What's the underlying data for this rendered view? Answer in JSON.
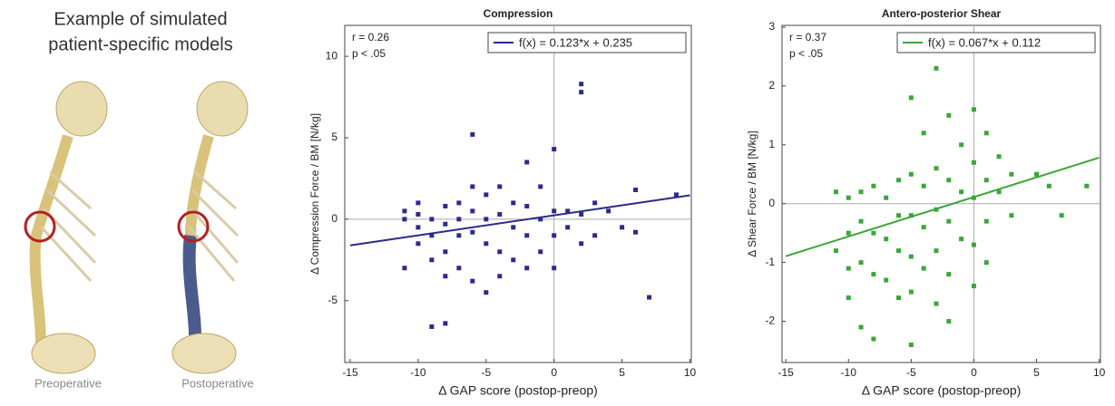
{
  "panel": {
    "title_lines": [
      "Example of simulated",
      "patient-specific models"
    ],
    "labels": [
      "Preoperative",
      "Postoperative"
    ]
  },
  "chart_data": [
    {
      "type": "scatter",
      "title": "Compression",
      "x_label": "Δ GAP score (postop-preop)",
      "y_label": "Δ Compression Force / BM [N/kg]",
      "annotations": [
        "r = 0.26",
        "p < .05"
      ],
      "color": "#2b2b8c",
      "x": [
        -11,
        -11,
        -11,
        -10,
        -10,
        -10,
        -10,
        -9,
        -9,
        -9,
        -9,
        -8,
        -8,
        -8,
        -8,
        -8,
        -7,
        -7,
        -7,
        -7,
        -6,
        -6,
        -6,
        -6,
        -6,
        -5,
        -5,
        -5,
        -5,
        -4,
        -4,
        -4,
        -4,
        -3,
        -3,
        -3,
        -2,
        -2,
        -2,
        -2,
        -1,
        -1,
        -1,
        0,
        0,
        0,
        0,
        1,
        1,
        2,
        2,
        2,
        2,
        3,
        3,
        4,
        5,
        6,
        6,
        7,
        9
      ],
      "values": [
        0.5,
        0,
        -3,
        1,
        0.3,
        -0.5,
        -1.5,
        0,
        -1,
        -2.5,
        -6.6,
        0.8,
        -0.3,
        -2,
        -3.5,
        -6.4,
        1,
        0,
        -1,
        -3,
        5.2,
        2,
        0.5,
        -0.8,
        -3.8,
        1.5,
        0,
        -1.5,
        -4.5,
        2,
        0.3,
        -2,
        -3.5,
        1,
        -0.5,
        -2.5,
        3.5,
        0.8,
        -1,
        -3,
        2,
        0,
        -2,
        4.3,
        0.5,
        -1,
        -3,
        0.5,
        -0.5,
        8.3,
        7.8,
        0.3,
        -1.5,
        1,
        -1,
        0.5,
        -0.5,
        1.8,
        -0.8,
        -4.8,
        1.5
      ],
      "fit": {
        "name": "f(x) = 0.123*x + 0.235",
        "x": [
          -15,
          10
        ],
        "values": [
          -1.61,
          1.465
        ],
        "color": "#2b2b8c"
      },
      "xlim": [
        -15.4,
        10.1
      ],
      "ylim": [
        -8.8,
        11.9
      ],
      "xticks": [
        -15,
        -10,
        -5,
        0,
        5,
        10
      ],
      "yticks": [
        -5,
        0,
        5,
        10
      ]
    },
    {
      "type": "scatter",
      "title": "Antero-posterior Shear",
      "x_label": "Δ GAP score (postop-preop)",
      "y_label": "Δ Shear Force / BM [N/kg]",
      "annotations": [
        "r = 0.37",
        "p < .05"
      ],
      "color": "#3aa63a",
      "x": [
        -11,
        -11,
        -10,
        -10,
        -10,
        -10,
        -9,
        -9,
        -9,
        -9,
        -8,
        -8,
        -8,
        -8,
        -7,
        -7,
        -7,
        -6,
        -6,
        -6,
        -6,
        -5,
        -5,
        -5,
        -5,
        -5,
        -5,
        -4,
        -4,
        -4,
        -4,
        -3,
        -3,
        -3,
        -3,
        -3,
        -2,
        -2,
        -2,
        -2,
        -1,
        -1,
        -1,
        0,
        0,
        0,
        0,
        0,
        1,
        1,
        1,
        2,
        2,
        3,
        3,
        5,
        6,
        7,
        9,
        -2,
        1
      ],
      "values": [
        0.2,
        -0.8,
        0.1,
        -0.5,
        -1.1,
        -1.6,
        0.2,
        -0.3,
        -1,
        -2.1,
        0.3,
        -0.5,
        -1.2,
        -2.3,
        0.1,
        -0.6,
        -1.3,
        0.4,
        -0.2,
        -0.8,
        -1.6,
        1.8,
        0.5,
        -0.2,
        -0.9,
        -1.5,
        -2.4,
        1.2,
        0.3,
        -0.4,
        -1.1,
        2.3,
        0.6,
        -0.1,
        -0.8,
        -1.7,
        1.5,
        0.4,
        -0.3,
        -1.2,
        1,
        0.2,
        -0.6,
        1.6,
        0.7,
        0.1,
        -0.7,
        -1.4,
        1.2,
        0.4,
        -0.3,
        0.8,
        0.2,
        0.5,
        -0.2,
        0.5,
        0.3,
        -0.2,
        0.3,
        -2,
        -1
      ],
      "fit": {
        "name": "f(x) = 0.067*x + 0.112",
        "x": [
          -15,
          10
        ],
        "values": [
          -0.893,
          0.782
        ],
        "color": "#3aa63a"
      },
      "xlim": [
        -15.3,
        10.1
      ],
      "ylim": [
        -2.7,
        3.03
      ],
      "xticks": [
        -15,
        -10,
        -5,
        0,
        5,
        10
      ],
      "yticks": [
        -2,
        -1,
        0,
        1,
        2,
        3
      ]
    }
  ]
}
